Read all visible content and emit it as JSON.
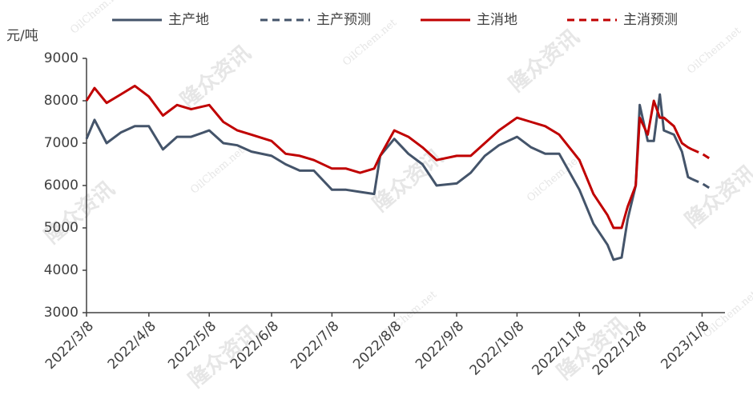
{
  "chart_data": {
    "type": "line",
    "y_label": "元/吨",
    "watermarks": [
      "隆众资讯",
      "OilChem.net"
    ],
    "x": [
      "2022/3/8",
      "2022/3/12",
      "2022/3/18",
      "2022/3/25",
      "2022/4/1",
      "2022/4/8",
      "2022/4/15",
      "2022/4/22",
      "2022/4/29",
      "2022/5/8",
      "2022/5/15",
      "2022/5/22",
      "2022/5/29",
      "2022/6/8",
      "2022/6/15",
      "2022/6/22",
      "2022/6/29",
      "2022/7/8",
      "2022/7/15",
      "2022/7/22",
      "2022/7/29",
      "2022/8/1",
      "2022/8/8",
      "2022/8/15",
      "2022/8/22",
      "2022/8/29",
      "2022/9/8",
      "2022/9/15",
      "2022/9/22",
      "2022/9/29",
      "2022/10/8",
      "2022/10/15",
      "2022/10/22",
      "2022/10/29",
      "2022/11/8",
      "2022/11/15",
      "2022/11/22",
      "2022/11/25",
      "2022/11/29",
      "2022/12/2",
      "2022/12/6",
      "2022/12/8",
      "2022/12/12",
      "2022/12/15",
      "2022/12/18",
      "2022/12/20",
      "2022/12/25",
      "2022/12/29",
      "2023/1/1",
      "2023/1/3",
      "2023/1/8",
      "2023/1/13"
    ],
    "series": [
      {
        "name": "主产地",
        "color": "#44546a",
        "dash": false,
        "values": [
          7100,
          7550,
          7000,
          7250,
          7400,
          7400,
          6850,
          7150,
          7150,
          7300,
          7000,
          6950,
          6800,
          6700,
          6500,
          6350,
          6350,
          5900,
          5900,
          5850,
          5800,
          6700,
          7100,
          6750,
          6500,
          6000,
          6050,
          6300,
          6700,
          6950,
          7150,
          6900,
          6750,
          6750,
          5900,
          5100,
          4600,
          4250,
          4300,
          5200,
          6000,
          7900,
          7050,
          7050,
          8150,
          7300,
          7200,
          6800,
          6200,
          6150,
          null,
          null
        ]
      },
      {
        "name": "主产预测",
        "color": "#44546a",
        "dash": true,
        "values": [
          null,
          null,
          null,
          null,
          null,
          null,
          null,
          null,
          null,
          null,
          null,
          null,
          null,
          null,
          null,
          null,
          null,
          null,
          null,
          null,
          null,
          null,
          null,
          null,
          null,
          null,
          null,
          null,
          null,
          null,
          null,
          null,
          null,
          null,
          null,
          null,
          null,
          null,
          null,
          null,
          null,
          null,
          null,
          null,
          null,
          null,
          null,
          null,
          null,
          6150,
          6050,
          5900
        ]
      },
      {
        "name": "主消地",
        "color": "#c00000",
        "dash": false,
        "values": [
          8000,
          8300,
          7950,
          8150,
          8350,
          8100,
          7650,
          7900,
          7800,
          7900,
          7500,
          7300,
          7200,
          7050,
          6750,
          6700,
          6600,
          6400,
          6400,
          6300,
          6400,
          6700,
          7300,
          7150,
          6900,
          6600,
          6700,
          6700,
          7000,
          7300,
          7600,
          7500,
          7400,
          7200,
          6600,
          5800,
          5300,
          5000,
          5000,
          5500,
          6000,
          7600,
          7200,
          8000,
          7600,
          7600,
          7400,
          7000,
          6900,
          6850,
          null,
          null
        ]
      },
      {
        "name": "主消预测",
        "color": "#c00000",
        "dash": true,
        "values": [
          null,
          null,
          null,
          null,
          null,
          null,
          null,
          null,
          null,
          null,
          null,
          null,
          null,
          null,
          null,
          null,
          null,
          null,
          null,
          null,
          null,
          null,
          null,
          null,
          null,
          null,
          null,
          null,
          null,
          null,
          null,
          null,
          null,
          null,
          null,
          null,
          null,
          null,
          null,
          null,
          null,
          null,
          null,
          null,
          null,
          null,
          null,
          null,
          null,
          6850,
          6750,
          6600
        ]
      }
    ],
    "ylim": [
      3000,
      9000
    ],
    "yticks": [
      3000,
      4000,
      5000,
      6000,
      7000,
      8000,
      9000
    ],
    "xticks": [
      "2022/3/8",
      "2022/4/8",
      "2022/5/8",
      "2022/6/8",
      "2022/7/8",
      "2022/8/8",
      "2022/9/8",
      "2022/10/8",
      "2022/11/8",
      "2022/12/8",
      "2023/1/8"
    ]
  }
}
